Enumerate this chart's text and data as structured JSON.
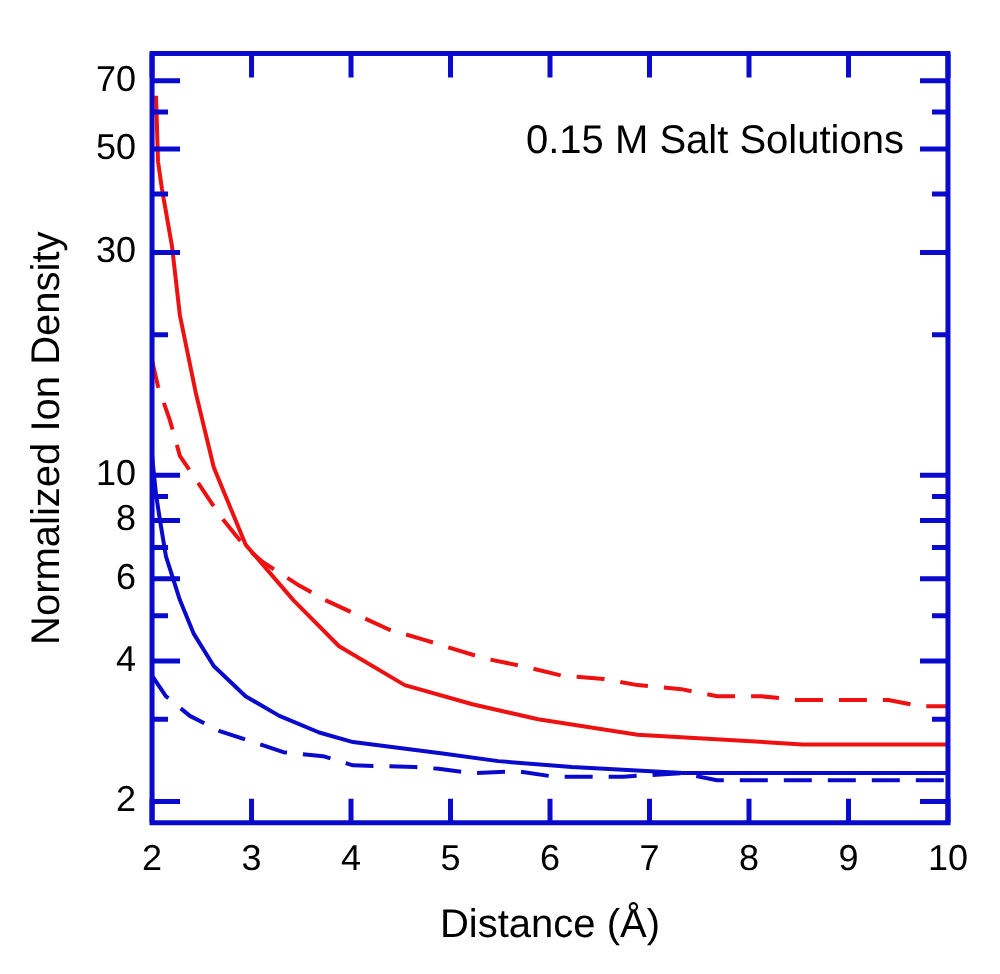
{
  "chart_data": {
    "type": "line",
    "xlabel": "Distance (Å)",
    "ylabel": "Normalized Ion Density",
    "annotations": [
      "0.15 M Salt Solutions"
    ],
    "log": "y",
    "grid": false,
    "legend": false,
    "marker": "none",
    "xlim": [
      2,
      10
    ],
    "xticks": [
      2,
      3,
      4,
      5,
      6,
      7,
      8,
      9,
      10
    ],
    "ylim": [
      1.8,
      80
    ],
    "yticks": [
      2,
      {
        "value": 3,
        "label": null
      },
      4,
      {
        "value": 5,
        "label": null
      },
      6,
      {
        "value": 7,
        "label": null
      },
      8,
      {
        "value": 9,
        "label": null
      },
      10,
      {
        "value": 20,
        "label": null
      },
      30,
      {
        "value": 40,
        "label": null
      },
      50,
      {
        "value": 60,
        "label": null
      },
      70
    ],
    "series": [
      {
        "color": "#ee1111",
        "line_style": "solid",
        "x": [
          2.04,
          2.06,
          2.1,
          2.2,
          2.28,
          2.44,
          2.62,
          2.94,
          3.42,
          3.88,
          4.54,
          5.22,
          5.88,
          6.88,
          8.54,
          10
        ],
        "values": [
          65,
          47,
          41,
          31,
          22,
          15,
          10.4,
          7.1,
          5.4,
          4.3,
          3.55,
          3.23,
          3.0,
          2.78,
          2.65,
          2.65
        ]
      },
      {
        "color": "#ee1111",
        "line_style": "dashed",
        "x": [
          2,
          2.06,
          2.18,
          2.28,
          2.54,
          2.68,
          2.94,
          3.12,
          3.48,
          3.74,
          4.08,
          4.38,
          4.72,
          5.02,
          5.34,
          5.72,
          6.12,
          6.54,
          6.88,
          7.32,
          7.68,
          8.12,
          8.48,
          9.4,
          9.72,
          10
        ],
        "values": [
          17.6,
          15.5,
          13.1,
          11,
          9.1,
          8.2,
          7.0,
          6.5,
          5.8,
          5.4,
          5.0,
          4.67,
          4.45,
          4.25,
          4.05,
          3.9,
          3.72,
          3.66,
          3.55,
          3.48,
          3.36,
          3.36,
          3.3,
          3.3,
          3.2,
          3.2
        ]
      },
      {
        "color": "#0a0acc",
        "line_style": "solid",
        "x": [
          2,
          2.04,
          2.08,
          2.14,
          2.28,
          2.42,
          2.62,
          2.94,
          3.28,
          3.68,
          4.02,
          4.94,
          5.48,
          6.22,
          7.34,
          10
        ],
        "values": [
          11,
          9.1,
          8.0,
          6.7,
          5.4,
          4.57,
          3.9,
          3.36,
          3.05,
          2.81,
          2.68,
          2.53,
          2.44,
          2.37,
          2.3,
          2.3
        ]
      },
      {
        "color": "#0a0acc",
        "line_style": "dashed",
        "x": [
          2,
          2.14,
          2.38,
          2.68,
          3.02,
          3.32,
          3.72,
          4.02,
          4.64,
          4.88,
          5.22,
          5.68,
          6.04,
          6.74,
          7.32,
          7.68,
          8.5,
          10
        ],
        "values": [
          3.72,
          3.36,
          3.05,
          2.83,
          2.68,
          2.55,
          2.5,
          2.39,
          2.37,
          2.35,
          2.3,
          2.32,
          2.26,
          2.26,
          2.3,
          2.22,
          2.22,
          2.22
        ]
      }
    ]
  }
}
